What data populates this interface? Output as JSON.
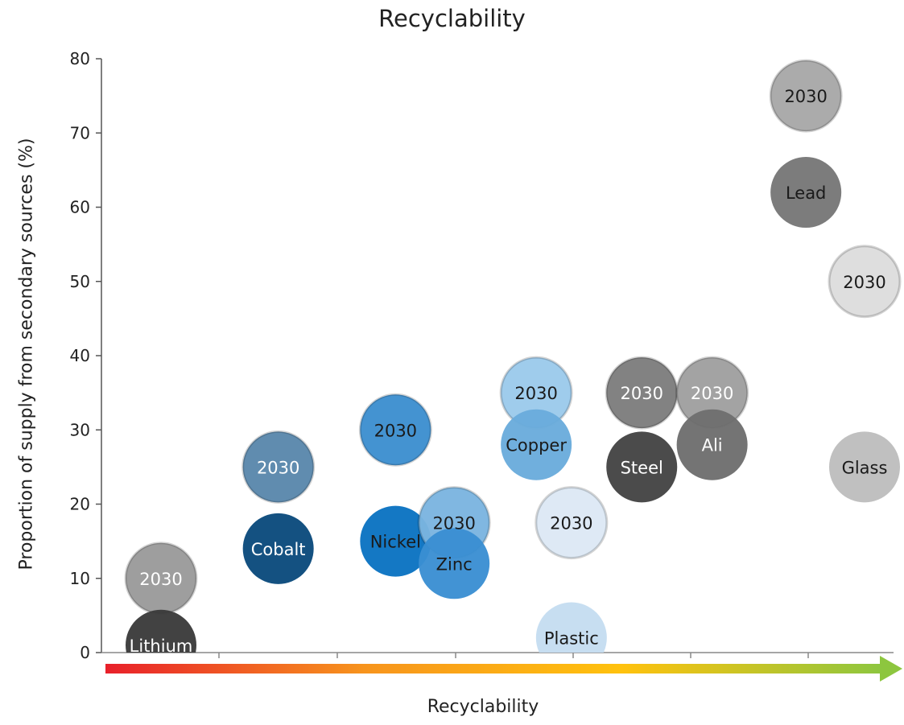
{
  "chart_data": {
    "type": "scatter",
    "title": "Recyclability",
    "xlabel": "Recyclability",
    "ylabel": "Proportion of supply from secondary sources (%)",
    "ylim": [
      0,
      80
    ],
    "yticks": [
      0,
      10,
      20,
      30,
      40,
      50,
      60,
      70,
      80
    ],
    "xlim": [
      0,
      13
    ],
    "grid": false,
    "x_axis_style": "gradient arrow from red (low) to green (high)",
    "gradient_colors": [
      "#e8202a",
      "#f7941d",
      "#ffc20e",
      "#8dc63f"
    ],
    "points": [
      {
        "label": "2030",
        "x": 1,
        "y": 10,
        "color": "#9b9b9b",
        "text_color": "#ffffff"
      },
      {
        "label": "Lithium",
        "x": 1,
        "y": 1,
        "color": "#3a3a3a",
        "text_color": "#ffffff"
      },
      {
        "label": "2030",
        "x": 3,
        "y": 25,
        "color": "#5a88ac",
        "text_color": "#ffffff"
      },
      {
        "label": "Cobalt",
        "x": 3,
        "y": 14,
        "color": "#0a4a7c",
        "text_color": "#ffffff"
      },
      {
        "label": "2030",
        "x": 5,
        "y": 30,
        "color": "#3d8fd0",
        "text_color": "#1a1a1a"
      },
      {
        "label": "Nickel",
        "x": 5,
        "y": 15,
        "color": "#0a73c2",
        "text_color": "#1a1a1a"
      },
      {
        "label": "2030",
        "x": 6,
        "y": 17.5,
        "color": "#7bb5e0",
        "text_color": "#1a1a1a"
      },
      {
        "label": "Zinc",
        "x": 6,
        "y": 12,
        "color": "#3a8fd2",
        "text_color": "#1a1a1a"
      },
      {
        "label": "2030",
        "x": 7.4,
        "y": 35,
        "color": "#9ccaec",
        "text_color": "#1a1a1a"
      },
      {
        "label": "Copper",
        "x": 7.4,
        "y": 28,
        "color": "#6aacdc",
        "text_color": "#1a1a1a"
      },
      {
        "label": "2030",
        "x": 8,
        "y": 17.5,
        "color": "#dde9f5",
        "text_color": "#1a1a1a"
      },
      {
        "label": "Plastic",
        "x": 8,
        "y": 2,
        "color": "#c5ddf0",
        "text_color": "#1a1a1a"
      },
      {
        "label": "2030",
        "x": 9.2,
        "y": 35,
        "color": "#7d7d7d",
        "text_color": "#ffffff"
      },
      {
        "label": "Steel",
        "x": 9.2,
        "y": 25,
        "color": "#444444",
        "text_color": "#ffffff"
      },
      {
        "label": "2030",
        "x": 10.4,
        "y": 35,
        "color": "#a0a0a0",
        "text_color": "#ffffff"
      },
      {
        "label": "Ali",
        "x": 10.4,
        "y": 28,
        "color": "#6e6e6e",
        "text_color": "#ffffff"
      },
      {
        "label": "2030",
        "x": 12,
        "y": 75,
        "color": "#a8a8a8",
        "text_color": "#1a1a1a"
      },
      {
        "label": "Lead",
        "x": 12,
        "y": 62,
        "color": "#777777",
        "text_color": "#1a1a1a"
      },
      {
        "label": "2030",
        "x": 13,
        "y": 50,
        "color": "#dddddd",
        "text_color": "#1a1a1a"
      },
      {
        "label": "Glass",
        "x": 13,
        "y": 25,
        "color": "#bdbdbd",
        "text_color": "#1a1a1a"
      }
    ]
  }
}
